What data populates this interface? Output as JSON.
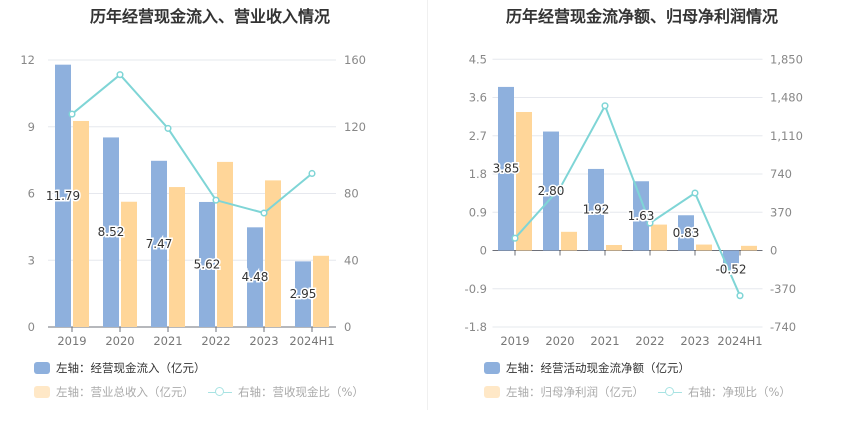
{
  "colors": {
    "bar1": "#8eb0dd",
    "bar2": "#ffd699",
    "line": "#7fd5d6",
    "bar2_legend": "#ffe8c7",
    "line_legend": "#a8e3e3"
  },
  "chart_data": [
    {
      "type": "bar",
      "title": "历年经营现金流入、营业收入情况",
      "categories": [
        "2019",
        "2020",
        "2021",
        "2022",
        "2023",
        "2024H1"
      ],
      "left_axis": {
        "range": [
          0,
          12
        ],
        "ticks": [
          "0",
          "3",
          "6",
          "9",
          "12"
        ]
      },
      "right_axis": {
        "range": [
          0,
          160
        ],
        "ticks": [
          "0",
          "40",
          "80",
          "120",
          "160"
        ]
      },
      "grid": true,
      "legend_placement": "bottom-left",
      "series": [
        {
          "name": "左轴：经营现金流入（亿元）",
          "type": "bar",
          "axis": "left",
          "values": [
            11.79,
            8.52,
            7.47,
            5.62,
            4.48,
            2.95
          ],
          "labels": [
            "11.79",
            "8.52",
            "7.47",
            "5.62",
            "4.48",
            "2.95"
          ]
        },
        {
          "name": "左轴：营业总收入（亿元）",
          "type": "bar",
          "axis": "left",
          "values": [
            9.26,
            5.63,
            6.29,
            7.42,
            6.59,
            3.2
          ]
        },
        {
          "name": "右轴：营收现金比（%）",
          "type": "line",
          "axis": "right",
          "values": [
            127.6,
            151.2,
            119,
            76,
            68.3,
            92
          ]
        }
      ]
    },
    {
      "type": "bar",
      "title": "历年经营现金流净额、归母净利润情况",
      "categories": [
        "2019",
        "2020",
        "2021",
        "2022",
        "2023",
        "2024H1"
      ],
      "left_axis": {
        "range": [
          -1.8,
          4.5
        ],
        "ticks": [
          "-1.8",
          "-0.9",
          "0",
          "0.9",
          "1.8",
          "2.7",
          "3.6",
          "4.5"
        ]
      },
      "right_axis": {
        "range": [
          -740,
          1850
        ],
        "ticks": [
          "-740",
          "-370",
          "0",
          "370",
          "740",
          "1,110",
          "1,480",
          "1,850"
        ]
      },
      "grid": true,
      "legend_placement": "bottom-left",
      "series": [
        {
          "name": "左轴：经营活动现金流净额（亿元）",
          "type": "bar",
          "axis": "left",
          "values": [
            3.85,
            2.8,
            1.92,
            1.63,
            0.83,
            -0.52
          ],
          "labels": [
            "3.85",
            "2.80",
            "1.92",
            "1.63",
            "0.83",
            "-0.52"
          ]
        },
        {
          "name": "左轴：归母净利润（亿元）",
          "type": "bar",
          "axis": "left",
          "values": [
            3.26,
            0.44,
            0.13,
            0.61,
            0.14,
            0.11
          ]
        },
        {
          "name": "右轴：净现比（%）",
          "type": "line",
          "axis": "right",
          "values": [
            119,
            604,
            1400,
            265,
            556,
            -437
          ]
        }
      ]
    }
  ]
}
